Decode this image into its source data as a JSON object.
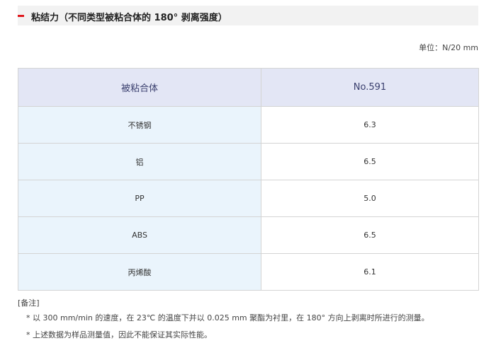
{
  "section": {
    "title": "粘结力（不同类型被粘合体的 180° 剥离强度）",
    "accent_color": "#e0191e"
  },
  "unit": "单位：N/20 mm",
  "table": {
    "headers": [
      "被粘合体",
      "No.591"
    ],
    "rows": [
      [
        "不锈钢",
        "6.3"
      ],
      [
        "铝",
        "6.5"
      ],
      [
        "PP",
        "5.0"
      ],
      [
        "ABS",
        "6.5"
      ],
      [
        "丙烯酸",
        "6.1"
      ]
    ]
  },
  "notes": {
    "label": "[备注]",
    "items": [
      "* 以 300 mm/min 的速度，在 23℃ 的温度下并以 0.025 mm 聚酯为衬里，在 180° 方向上剥离时所进行的测量。",
      "* 上述数据为样品测量值，因此不能保证其实际性能。"
    ]
  }
}
